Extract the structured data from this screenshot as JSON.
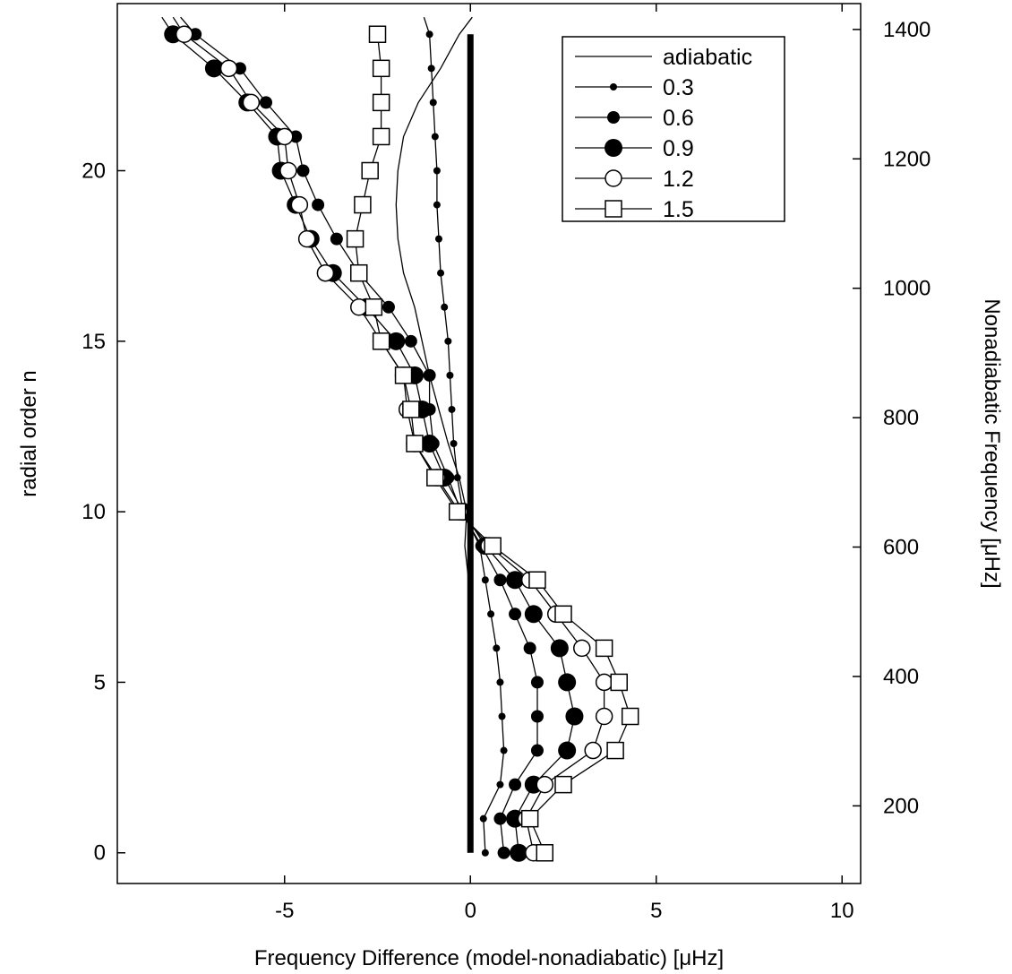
{
  "chart_data": {
    "type": "line",
    "xlabel": "Frequency Difference (model-nonadiabatic) [μHz]",
    "ylabel": "radial order n",
    "y2label": "Nonadiabatic Frequency [μHz]",
    "xlim": [
      -9.5,
      10.5
    ],
    "ylim": [
      -0.9,
      24.9
    ],
    "y2lim": [
      80,
      1440
    ],
    "x_ticks": [
      -5,
      0,
      5,
      10
    ],
    "y_ticks": [
      0,
      5,
      10,
      15,
      20
    ],
    "y2_ticks": [
      200,
      400,
      600,
      800,
      1000,
      1200,
      1400
    ],
    "grid": false,
    "legend_position": "top-right",
    "zero_line": {
      "x": 0,
      "y_range": [
        0,
        24
      ]
    },
    "series": [
      {
        "name": "adiabatic",
        "marker": "none",
        "points": [
          [
            -0.05,
            0
          ],
          [
            -0.05,
            1
          ],
          [
            -0.05,
            2
          ],
          [
            -0.05,
            3
          ],
          [
            -0.05,
            4
          ],
          [
            -0.05,
            5
          ],
          [
            -0.05,
            6
          ],
          [
            -0.05,
            7
          ],
          [
            -0.05,
            8
          ],
          [
            -0.15,
            9
          ],
          [
            -0.1,
            10
          ],
          [
            -0.3,
            11
          ],
          [
            -0.6,
            12
          ],
          [
            -0.85,
            13
          ],
          [
            -1.1,
            14
          ],
          [
            -1.3,
            15
          ],
          [
            -1.5,
            16
          ],
          [
            -1.8,
            17
          ],
          [
            -1.95,
            18
          ],
          [
            -2.0,
            19
          ],
          [
            -1.95,
            20
          ],
          [
            -1.8,
            21
          ],
          [
            -1.4,
            22
          ],
          [
            -0.8,
            23
          ],
          [
            -0.3,
            24
          ],
          [
            0.05,
            24.5
          ]
        ]
      },
      {
        "name": "0.3",
        "marker": "dot-small",
        "points": [
          [
            0.4,
            0
          ],
          [
            0.35,
            1
          ],
          [
            0.8,
            2
          ],
          [
            0.9,
            3
          ],
          [
            0.85,
            4
          ],
          [
            0.8,
            5
          ],
          [
            0.7,
            6
          ],
          [
            0.55,
            7
          ],
          [
            0.4,
            8
          ],
          [
            0.25,
            9
          ],
          [
            -0.2,
            10
          ],
          [
            -0.35,
            11
          ],
          [
            -0.45,
            12
          ],
          [
            -0.5,
            13
          ],
          [
            -0.55,
            14
          ],
          [
            -0.6,
            15
          ],
          [
            -0.7,
            16
          ],
          [
            -0.8,
            17
          ],
          [
            -0.85,
            18
          ],
          [
            -0.9,
            19
          ],
          [
            -0.9,
            20
          ],
          [
            -0.95,
            21
          ],
          [
            -1.0,
            22
          ],
          [
            -1.05,
            23
          ],
          [
            -1.1,
            24
          ],
          [
            -1.25,
            24.5
          ]
        ]
      },
      {
        "name": "0.6",
        "marker": "dot-medium",
        "points": [
          [
            0.9,
            0
          ],
          [
            0.8,
            1
          ],
          [
            1.2,
            2
          ],
          [
            1.8,
            3
          ],
          [
            1.8,
            4
          ],
          [
            1.8,
            5
          ],
          [
            1.6,
            6
          ],
          [
            1.2,
            7
          ],
          [
            0.8,
            8
          ],
          [
            0.3,
            9
          ],
          [
            -0.25,
            10
          ],
          [
            -0.6,
            11
          ],
          [
            -1.0,
            12
          ],
          [
            -1.1,
            13
          ],
          [
            -1.1,
            14
          ],
          [
            -1.6,
            15
          ],
          [
            -2.2,
            16
          ],
          [
            -3.0,
            17
          ],
          [
            -3.6,
            18
          ],
          [
            -4.1,
            19
          ],
          [
            -4.5,
            20
          ],
          [
            -4.7,
            21
          ],
          [
            -5.5,
            22
          ],
          [
            -6.2,
            23
          ],
          [
            -7.4,
            24
          ],
          [
            -7.8,
            24.5
          ]
        ]
      },
      {
        "name": "0.9",
        "marker": "dot-large",
        "points": [
          [
            1.3,
            0
          ],
          [
            1.2,
            1
          ],
          [
            1.7,
            2
          ],
          [
            2.6,
            3
          ],
          [
            2.8,
            4
          ],
          [
            2.6,
            5
          ],
          [
            2.4,
            6
          ],
          [
            1.7,
            7
          ],
          [
            1.2,
            8
          ],
          [
            0.4,
            9
          ],
          [
            -0.2,
            10
          ],
          [
            -0.7,
            11
          ],
          [
            -1.1,
            12
          ],
          [
            -1.3,
            13
          ],
          [
            -1.5,
            14
          ],
          [
            -2.0,
            15
          ],
          [
            -2.8,
            16
          ],
          [
            -3.7,
            17
          ],
          [
            -4.3,
            18
          ],
          [
            -4.7,
            19
          ],
          [
            -5.1,
            20
          ],
          [
            -5.2,
            21
          ],
          [
            -6.0,
            22
          ],
          [
            -6.9,
            23
          ],
          [
            -8.0,
            24
          ],
          [
            -8.3,
            24.5
          ]
        ]
      },
      {
        "name": "1.2",
        "marker": "circle-open",
        "points": [
          [
            1.7,
            0
          ],
          [
            1.5,
            1
          ],
          [
            2.0,
            2
          ],
          [
            3.3,
            3
          ],
          [
            3.6,
            4
          ],
          [
            3.6,
            5
          ],
          [
            3.0,
            6
          ],
          [
            2.3,
            7
          ],
          [
            1.6,
            8
          ],
          [
            0.5,
            9
          ],
          [
            -0.3,
            10
          ],
          [
            -0.9,
            11
          ],
          [
            -1.5,
            12
          ],
          [
            -1.7,
            13
          ],
          [
            -1.8,
            14
          ],
          [
            -2.4,
            15
          ],
          [
            -3.0,
            16
          ],
          [
            -3.9,
            17
          ],
          [
            -4.4,
            18
          ],
          [
            -4.6,
            19
          ],
          [
            -4.9,
            20
          ],
          [
            -5.0,
            21
          ],
          [
            -5.9,
            22
          ],
          [
            -6.5,
            23
          ],
          [
            -7.7,
            24
          ],
          [
            -8.0,
            24.5
          ]
        ]
      },
      {
        "name": "1.5",
        "marker": "square-open",
        "points": [
          [
            2.0,
            0
          ],
          [
            1.6,
            1
          ],
          [
            2.5,
            2
          ],
          [
            3.9,
            3
          ],
          [
            4.3,
            4
          ],
          [
            4.0,
            5
          ],
          [
            3.6,
            6
          ],
          [
            2.5,
            7
          ],
          [
            1.8,
            8
          ],
          [
            0.6,
            9
          ],
          [
            -0.35,
            10
          ],
          [
            -0.95,
            11
          ],
          [
            -1.5,
            12
          ],
          [
            -1.6,
            13
          ],
          [
            -1.8,
            14
          ],
          [
            -2.4,
            15
          ],
          [
            -2.6,
            16
          ],
          [
            -3.0,
            17
          ],
          [
            -3.1,
            18
          ],
          [
            -2.9,
            19
          ],
          [
            -2.7,
            20
          ],
          [
            -2.4,
            21
          ],
          [
            -2.4,
            22
          ],
          [
            -2.4,
            23
          ],
          [
            -2.5,
            24
          ]
        ]
      }
    ]
  }
}
